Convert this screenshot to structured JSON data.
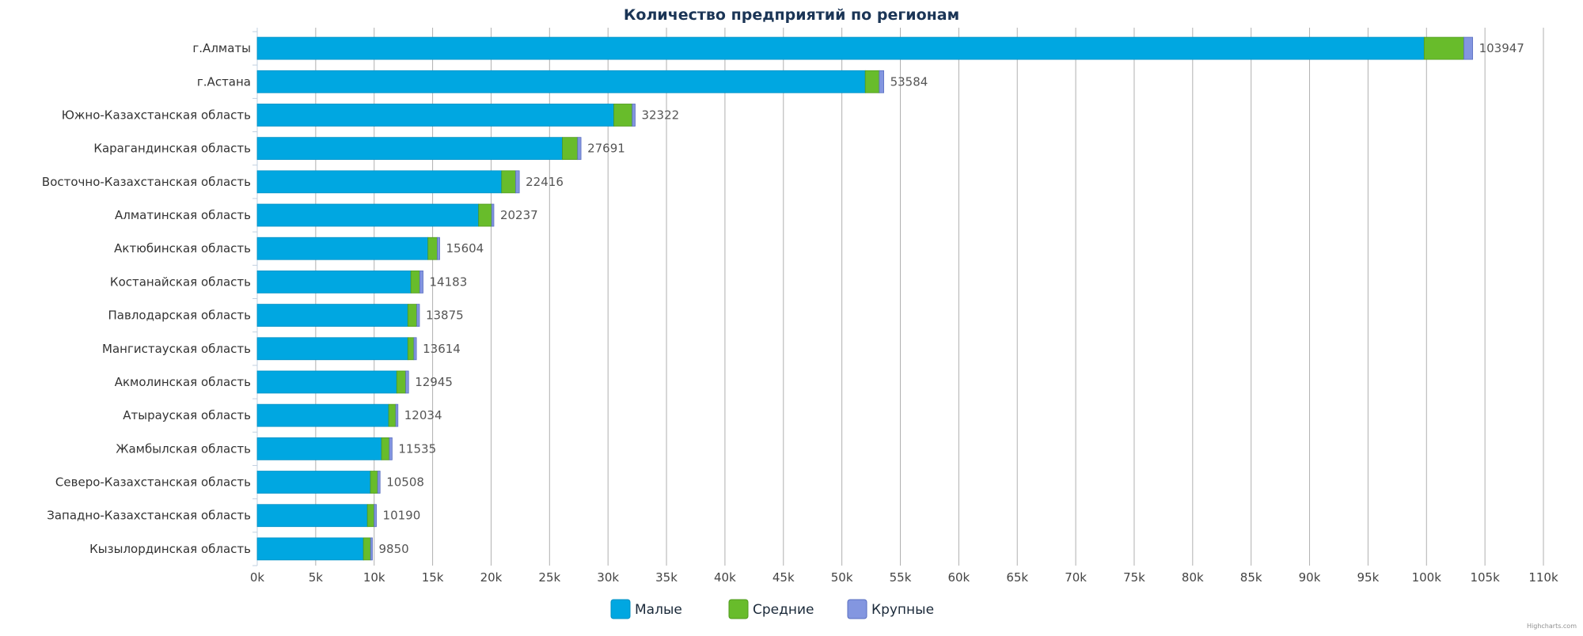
{
  "chart_data": {
    "type": "bar",
    "orientation": "horizontal",
    "stacked": true,
    "title": "Количество предприятий по регионам",
    "categories": [
      "г.Алматы",
      "г.Астана",
      "Южно-Казахстанская область",
      "Карагандинская область",
      "Восточно-Казахстанская область",
      "Алматинская область",
      "Актюбинская область",
      "Костанайская область",
      "Павлодарская область",
      "Мангистауская область",
      "Акмолинская область",
      "Атырауская область",
      "Жамбылская область",
      "Северо-Казахстанская область",
      "Западно-Казахстанская область",
      "Кызылординская область"
    ],
    "totals": [
      103947,
      53584,
      32322,
      27691,
      22416,
      20237,
      15604,
      14183,
      13875,
      13614,
      12945,
      12034,
      11535,
      10508,
      10190,
      9850
    ],
    "series": [
      {
        "name": "Малые",
        "color": "#00a7e1",
        "values": [
          99800,
          52000,
          30500,
          26100,
          20900,
          18930,
          14600,
          13140,
          12880,
          12880,
          11930,
          11240,
          10630,
          9680,
          9420,
          9080
        ]
      },
      {
        "name": "Средние",
        "color": "#68bc2b",
        "values": [
          3397,
          1200,
          1570,
          1300,
          1200,
          1120,
          800,
          760,
          770,
          520,
          770,
          610,
          670,
          620,
          580,
          620
        ]
      },
      {
        "name": "Крупные",
        "color": "#8396e0",
        "values": [
          750,
          384,
          252,
          291,
          316,
          187,
          204,
          283,
          225,
          214,
          245,
          184,
          235,
          208,
          190,
          150
        ]
      }
    ],
    "xlim": [
      0,
      110000
    ],
    "xticks": [
      "0k",
      "5k",
      "10k",
      "15k",
      "20k",
      "25k",
      "30k",
      "35k",
      "40k",
      "45k",
      "50k",
      "55k",
      "60k",
      "65k",
      "70k",
      "75k",
      "80k",
      "85k",
      "90k",
      "95k",
      "100k",
      "105k",
      "110k"
    ],
    "grid": true,
    "legend": "bottom",
    "credit": "Highcharts.com",
    "colors": {
      "title": "#1b3556",
      "grid": "#b0b0b0",
      "label": "#333333",
      "value_label": "#555555"
    }
  }
}
